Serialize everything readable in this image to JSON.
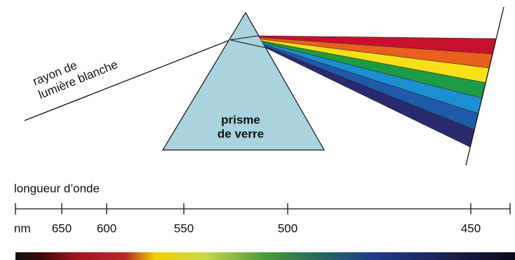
{
  "ray_label": {
    "line1": "rayon de",
    "line2": "lumière blanche"
  },
  "prism_label": {
    "line1": "prisme",
    "line2": "de verre"
  },
  "scale": {
    "title": "longueur d’onde",
    "unit": "nm",
    "ticks": [
      650,
      600,
      550,
      500,
      450
    ]
  }
}
